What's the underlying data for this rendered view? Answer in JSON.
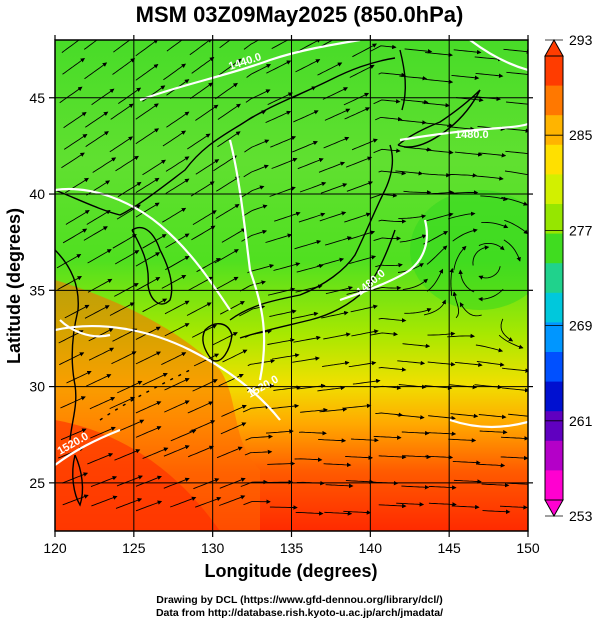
{
  "title": "MSM 03Z09May2025 (850.0hPa)",
  "map": {
    "xlabel": "Longitude (degrees)",
    "ylabel": "Latitude  (degrees)",
    "lon_range": [
      120,
      150
    ],
    "lat_range": [
      22.5,
      48
    ],
    "x_ticks": [
      "120",
      "125",
      "130",
      "135",
      "140",
      "145",
      "150"
    ],
    "y_ticks": [
      "25",
      "30",
      "35",
      "40",
      "45"
    ],
    "contour_labels": [
      "1440.0",
      "1480.0",
      "1520.0",
      "1480.0",
      "1520.0"
    ]
  },
  "colorbar": {
    "tick_labels": [
      "293",
      "285",
      "277",
      "269",
      "261",
      "253"
    ],
    "colors": [
      "#ff3c00",
      "#ff7800",
      "#ffb400",
      "#ffe000",
      "#d2f000",
      "#96e600",
      "#40dc20",
      "#20d28c",
      "#00c8dc",
      "#0096ff",
      "#0050ff",
      "#0010d0",
      "#6000c0",
      "#b400c8",
      "#ff00d0"
    ]
  },
  "credits": {
    "line1": "Drawing by DCL (https://www.gfd-dennou.org/library/dcl/)",
    "line2": "Data from http://database.rish.kyoto-u.ac.jp/arch/jmadata/"
  }
}
